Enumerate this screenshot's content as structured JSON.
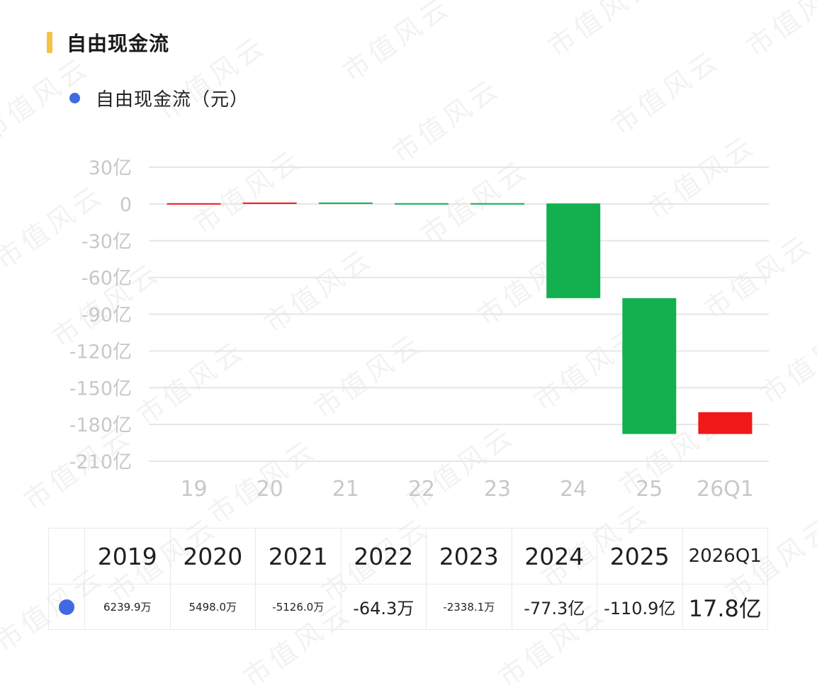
{
  "header": {
    "title": "自由现金流",
    "accent_color": "#F6C244"
  },
  "legend": {
    "label": "自由现金流（元）",
    "dot_color": "#3F6AE1"
  },
  "watermark": "市值风云",
  "colors": {
    "positive": "#F01818",
    "negative": "#12B04F",
    "grid": "#E6E6E6",
    "axis_text": "#C8C8C8"
  },
  "chart_data": {
    "type": "bar",
    "subtype": "waterfall",
    "categories": [
      "19",
      "20",
      "21",
      "22",
      "23",
      "24",
      "25",
      "26Q1"
    ],
    "y_tick_labels": [
      "30亿",
      "0",
      "-30亿",
      "-60亿",
      "-90亿",
      "-120亿",
      "-150亿",
      "-180亿",
      "-210亿"
    ],
    "y_ticks": [
      30,
      0,
      -30,
      -60,
      -90,
      -120,
      -150,
      -180,
      -210
    ],
    "ylim": [
      -210,
      30
    ],
    "y_unit": "亿",
    "grid": true,
    "series": [
      {
        "values": [
          0.624,
          0.55,
          -0.513,
          -0.0064,
          -0.234,
          -77.3,
          -110.9,
          17.8
        ],
        "bar_start": [
          0,
          0.624,
          1.174,
          0.661,
          0.655,
          0.421,
          -76.879,
          -187.779
        ],
        "bar_end": [
          0.624,
          1.174,
          0.661,
          0.655,
          0.421,
          -76.879,
          -187.779,
          -169.979
        ]
      }
    ]
  },
  "table": {
    "headers": [
      "2019",
      "2020",
      "2021",
      "2022",
      "2023",
      "2024",
      "2025",
      "2026Q1"
    ],
    "values": [
      "6239.9万",
      "5498.0万",
      "-5126.0万",
      "-64.3万",
      "-2338.1万",
      "-77.3亿",
      "-110.9亿",
      "17.8亿"
    ]
  }
}
